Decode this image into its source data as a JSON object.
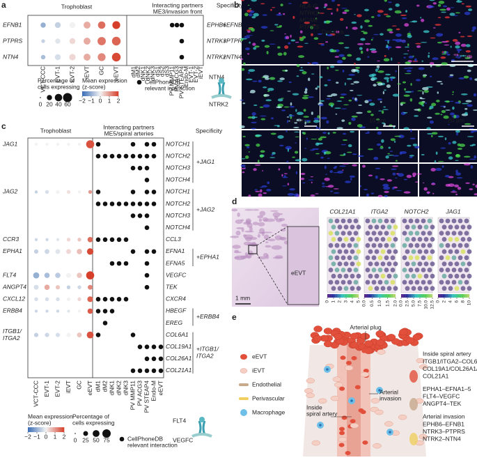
{
  "chart_data": [
    {
      "type": "dotplot",
      "label": "a",
      "headers": {
        "left": [
          "Trophoblast"
        ],
        "middle": [
          "Interacting partners",
          "ME3/invasion front"
        ],
        "right": [
          "Specificity"
        ]
      },
      "trophoblast": [
        "VCT-CCC",
        "EVT-1",
        "EVT-2",
        "iEVT",
        "GC",
        "eEVT"
      ],
      "partners": [
        "dM1",
        "dM2",
        "dNK1",
        "dNK2",
        "dNK3",
        "dS1",
        "dS2",
        "dS3",
        "PV MMP11",
        "PV ACG3",
        "PV STEAP4",
        "Endo-M",
        "EVT-1",
        "EVT-2",
        "iEVT"
      ],
      "ligands": [
        {
          "name": [
            "EFNB1"
          ],
          "pct": [
            20,
            25,
            25,
            35,
            40,
            45
          ],
          "z": [
            -1,
            -0.5,
            0,
            0.8,
            1.5,
            2
          ],
          "specificity": [
            "+EFNB1"
          ],
          "partners": [
            {
              "name": "EPHB6",
              "interactions": [
                false,
                false,
                false,
                false,
                false,
                false,
                false,
                false,
                true,
                true,
                true,
                false,
                false,
                false,
                false
              ]
            }
          ]
        },
        {
          "name": [
            "PTPRS"
          ],
          "pct": [
            10,
            20,
            25,
            35,
            50,
            55
          ],
          "z": [
            -0.5,
            -0.2,
            0.3,
            0.8,
            1.4,
            1.6
          ],
          "specificity": [
            "+PTPRS"
          ],
          "partners": [
            {
              "name": "NTRK3",
              "interactions": [
                false,
                false,
                false,
                false,
                false,
                false,
                false,
                false,
                false,
                false,
                true,
                false,
                false,
                false,
                false
              ]
            }
          ]
        },
        {
          "name": [
            "NTN4"
          ],
          "pct": [
            15,
            25,
            30,
            35,
            45,
            55
          ],
          "z": [
            -0.8,
            -0.3,
            0.3,
            0.8,
            1.2,
            1.9
          ],
          "specificity": [
            "+NTN4"
          ],
          "partners": [
            {
              "name": "NTRK2",
              "interactions": [
                false,
                false,
                false,
                false,
                false,
                false,
                false,
                false,
                false,
                false,
                true,
                false,
                false,
                false,
                false
              ]
            }
          ]
        }
      ],
      "colormap": [
        "#3a6db5",
        "#f2f2f2",
        "#d6402b"
      ],
      "zlim": [
        -2,
        2
      ],
      "legend": {
        "size_title": [
          "Percentage of",
          "cells expressing"
        ],
        "size_ticks": [
          0,
          20,
          40,
          60
        ],
        "color_title": [
          "Mean expression",
          "(z-score)"
        ],
        "color_ticks": [
          {
            "value": -2,
            "label": "−2"
          },
          {
            "value": -1,
            "label": "−1"
          },
          0,
          1,
          2
        ],
        "interaction_label": [
          "CellPhoneDB",
          "relevant interaction"
        ]
      },
      "icon_labels": [
        "NTN4",
        "NTRK2"
      ]
    },
    {
      "type": "dotplot",
      "label": "c",
      "headers": {
        "left": [
          "Trophoblast"
        ],
        "middle": [
          "Interacting partners",
          "ME5/spiral arteries"
        ],
        "right": [
          "Specificity"
        ]
      },
      "trophoblast": [
        "VCT-CCC",
        "EVT-1",
        "EVT-2",
        "iEVT",
        "GC",
        "eEVT"
      ],
      "partners": [
        "dM1",
        "dM2",
        "dNK1",
        "dNK2",
        "dNK3",
        "PV MMP11",
        "PV ACG3",
        "PV STEAP4",
        "Endo-M",
        "eEVT"
      ],
      "ligands": [
        {
          "name": [
            "JAG1"
          ],
          "pct": [
            10,
            10,
            10,
            10,
            10,
            70
          ],
          "z": [
            0,
            0,
            0,
            0,
            0,
            1.8
          ],
          "specificity": [
            "+JAG1"
          ],
          "partners": [
            {
              "name": "NOTCH1",
              "interactions": [
                true,
                false,
                false,
                false,
                false,
                true,
                false,
                true,
                true,
                false
              ]
            },
            {
              "name": "NOTCH2",
              "interactions": [
                true,
                true,
                true,
                true,
                true,
                true,
                true,
                true,
                true,
                false
              ]
            },
            {
              "name": "NOTCH3",
              "interactions": [
                false,
                false,
                false,
                false,
                false,
                true,
                true,
                true,
                false,
                false
              ]
            },
            {
              "name": "NOTCH4",
              "interactions": [
                false,
                false,
                false,
                false,
                false,
                false,
                false,
                true,
                false,
                false
              ]
            }
          ]
        },
        {
          "name": [
            "JAG2"
          ],
          "pct": [
            10,
            15,
            15,
            15,
            10,
            15
          ],
          "z": [
            -0.5,
            -0.3,
            0,
            0.2,
            0,
            1
          ],
          "specificity": [
            "+JAG2"
          ],
          "partners": [
            {
              "name": "NOTCH1",
              "interactions": [
                true,
                false,
                false,
                false,
                false,
                true,
                false,
                true,
                true,
                false
              ]
            },
            {
              "name": "NOTCH2",
              "interactions": [
                true,
                true,
                true,
                true,
                true,
                true,
                true,
                true,
                true,
                false
              ]
            },
            {
              "name": "NOTCH3",
              "interactions": [
                false,
                false,
                false,
                false,
                false,
                true,
                true,
                true,
                false,
                false
              ]
            },
            {
              "name": "NOTCH4",
              "interactions": [
                false,
                false,
                false,
                false,
                false,
                false,
                false,
                true,
                false,
                false
              ]
            }
          ]
        },
        {
          "name": [
            "CCR3"
          ],
          "pct": [
            10,
            10,
            10,
            15,
            15,
            30
          ],
          "z": [
            -0.4,
            -0.4,
            -0.2,
            0.3,
            0.5,
            1.5
          ],
          "partners": [
            {
              "name": "CCL3",
              "interactions": [
                true,
                true,
                true,
                true,
                true,
                false,
                false,
                false,
                false,
                false
              ]
            }
          ]
        },
        {
          "name": [
            "EPHA1"
          ],
          "pct": [
            20,
            25,
            25,
            25,
            30,
            45
          ],
          "z": [
            -0.5,
            -0.4,
            -0.2,
            0.3,
            0.6,
            1.9
          ],
          "specificity": [
            "+EPHA1"
          ],
          "partners": [
            {
              "name": "EFNA1",
              "interactions": [
                false,
                false,
                false,
                false,
                false,
                true,
                false,
                true,
                true,
                false
              ]
            },
            {
              "name": "EFNA5",
              "interactions": [
                false,
                false,
                true,
                true,
                true,
                false,
                false,
                true,
                false,
                false
              ]
            }
          ]
        },
        {
          "name": [
            "FLT4"
          ],
          "pct": [
            40,
            30,
            30,
            25,
            30,
            70
          ],
          "z": [
            -1,
            -0.8,
            -0.6,
            0,
            0.5,
            2
          ],
          "partners": [
            {
              "name": "VEGFC",
              "interactions": [
                false,
                false,
                false,
                false,
                false,
                false,
                false,
                true,
                false,
                false
              ]
            }
          ]
        },
        {
          "name": [
            "ANGPT4"
          ],
          "pct": [
            25,
            30,
            20,
            15,
            15,
            25
          ],
          "z": [
            -0.3,
            0.8,
            0.5,
            -0.5,
            -0.4,
            1.2
          ],
          "partners": [
            {
              "name": "TEK",
              "interactions": [
                false,
                false,
                false,
                false,
                false,
                false,
                false,
                true,
                false,
                false
              ]
            }
          ]
        },
        {
          "name": [
            "CXCL12"
          ],
          "pct": [
            15,
            15,
            15,
            15,
            15,
            35
          ],
          "z": [
            -0.3,
            -0.3,
            -0.3,
            0,
            0.3,
            1.6
          ],
          "partners": [
            {
              "name": "CXCR4",
              "interactions": [
                true,
                true,
                true,
                true,
                true,
                false,
                false,
                false,
                false,
                false
              ]
            }
          ]
        },
        {
          "name": [
            "ERBB4"
          ],
          "pct": [
            10,
            10,
            10,
            10,
            10,
            30
          ],
          "z": [
            -0.4,
            -0.4,
            -0.4,
            -0.2,
            0,
            1.7
          ],
          "specificity": [
            "+ERBB4"
          ],
          "partners": [
            {
              "name": "HBEGF",
              "interactions": [
                true,
                true,
                true,
                false,
                false,
                false,
                false,
                false,
                false,
                false
              ]
            },
            {
              "name": "EREG",
              "interactions": [
                false,
                true,
                false,
                false,
                false,
                false,
                false,
                false,
                false,
                false
              ]
            }
          ]
        },
        {
          "name": [
            "ITGB1/",
            "ITGA2"
          ],
          "pct": [
            20,
            20,
            20,
            20,
            25,
            50
          ],
          "z": [
            -0.5,
            -0.4,
            -0.3,
            0,
            0.5,
            1.8
          ],
          "specificity": [
            "+ITGB1/",
            "ITGA2"
          ],
          "partners": [
            {
              "name": "COL6A1",
              "interactions": [
                true,
                false,
                false,
                false,
                false,
                true,
                false,
                false,
                false,
                false
              ]
            },
            {
              "name": "COL19A1",
              "interactions": [
                false,
                false,
                false,
                false,
                false,
                false,
                true,
                true,
                true,
                true
              ]
            },
            {
              "name": "COL26A1",
              "interactions": [
                false,
                false,
                false,
                false,
                false,
                false,
                false,
                true,
                true,
                true
              ]
            },
            {
              "name": "COL21A1",
              "interactions": [
                false,
                false,
                false,
                false,
                false,
                true,
                true,
                true,
                true,
                true
              ]
            }
          ]
        }
      ],
      "colormap": [
        "#3a6db5",
        "#f2f2f2",
        "#d6402b"
      ],
      "zlim": [
        -2,
        2
      ],
      "legend": {
        "size_title": [
          "Percentage of",
          "cells expressing"
        ],
        "size_ticks": [
          0,
          25,
          50,
          75
        ],
        "color_title": [
          "Mean expression",
          "(z-score)"
        ],
        "color_ticks": [
          {
            "value": -2,
            "label": "−2"
          },
          {
            "value": -1,
            "label": "−1"
          },
          0,
          1,
          2
        ],
        "interaction_label": [
          "CellPhoneDB",
          "relevant interaction"
        ]
      },
      "icon_labels": [
        "FLT4",
        "VEGFC"
      ]
    }
  ],
  "panel_b": {
    "label": "b",
    "channels": [
      {
        "name": "HLA-G",
        "color": "#3fd6d6"
      },
      {
        "name": "NTRK3",
        "color": "#ff3b3b"
      },
      {
        "name": "MCAM",
        "color": "#4be04b"
      },
      {
        "name": "PTPRS",
        "color": "#e84be8"
      }
    ],
    "region": "Decidua",
    "scale_bars": [
      "200 µm",
      "10 µm",
      "10 µm",
      "20 µm"
    ]
  },
  "panel_d": {
    "label": "d",
    "inset_label": "eEVT",
    "scale_bar": "1 mm",
    "genes": [
      {
        "name": "COL21A1",
        "lim": [
          0,
          5
        ],
        "ticks": [
          0,
          1,
          2,
          3,
          4,
          5
        ]
      },
      {
        "name": "ITGA2",
        "lim": [
          0,
          2
        ],
        "ticks": [
          {
            "value": 0,
            "label": "0.0"
          },
          {
            "value": 0.5,
            "label": "0.5"
          },
          {
            "value": 1,
            "label": "1.0"
          },
          {
            "value": 1.5,
            "label": "1.5"
          },
          {
            "value": 2,
            "label": "2.0"
          }
        ]
      },
      {
        "name": "NOTCH2",
        "lim": [
          0,
          12.5
        ],
        "ticks": [
          {
            "value": 0,
            "label": "0.0"
          },
          {
            "value": 2.5,
            "label": "2.5"
          },
          {
            "value": 5,
            "label": "5.0"
          },
          {
            "value": 7.5,
            "label": "7.5"
          },
          {
            "value": 10,
            "label": "10.0"
          },
          {
            "value": 12.5,
            "label": "12.5"
          }
        ]
      },
      {
        "name": "JAG1",
        "lim": [
          0,
          10
        ],
        "ticks": [
          0,
          2,
          4,
          6,
          8,
          10
        ]
      }
    ]
  },
  "panel_e": {
    "label": "e",
    "plug": "Arterial plug",
    "legend": [
      "eEVT",
      "iEVT",
      "Endothelial",
      "Perivascular",
      "Macrophage"
    ],
    "annotations": [
      [
        "Inside",
        "spiral artery"
      ],
      [
        "Arterial",
        "invasion"
      ]
    ],
    "interactions": [
      {
        "title": "Inside spiral artery",
        "lines": [
          "ITGB1/ITGA2–COL6A1/",
          "COL19A1/COL26A1/",
          "COL21A1"
        ]
      },
      {
        "lines": [
          "EPHA1–EFNA1–5",
          "FLT4–VEGFC",
          "ANGPT4–TEK"
        ]
      },
      {
        "title": "Arterial invasion",
        "lines": [
          "EPHB6–EFNB1",
          "NTRK3–PTPRS",
          "NTRK2–NTN4"
        ]
      }
    ]
  }
}
